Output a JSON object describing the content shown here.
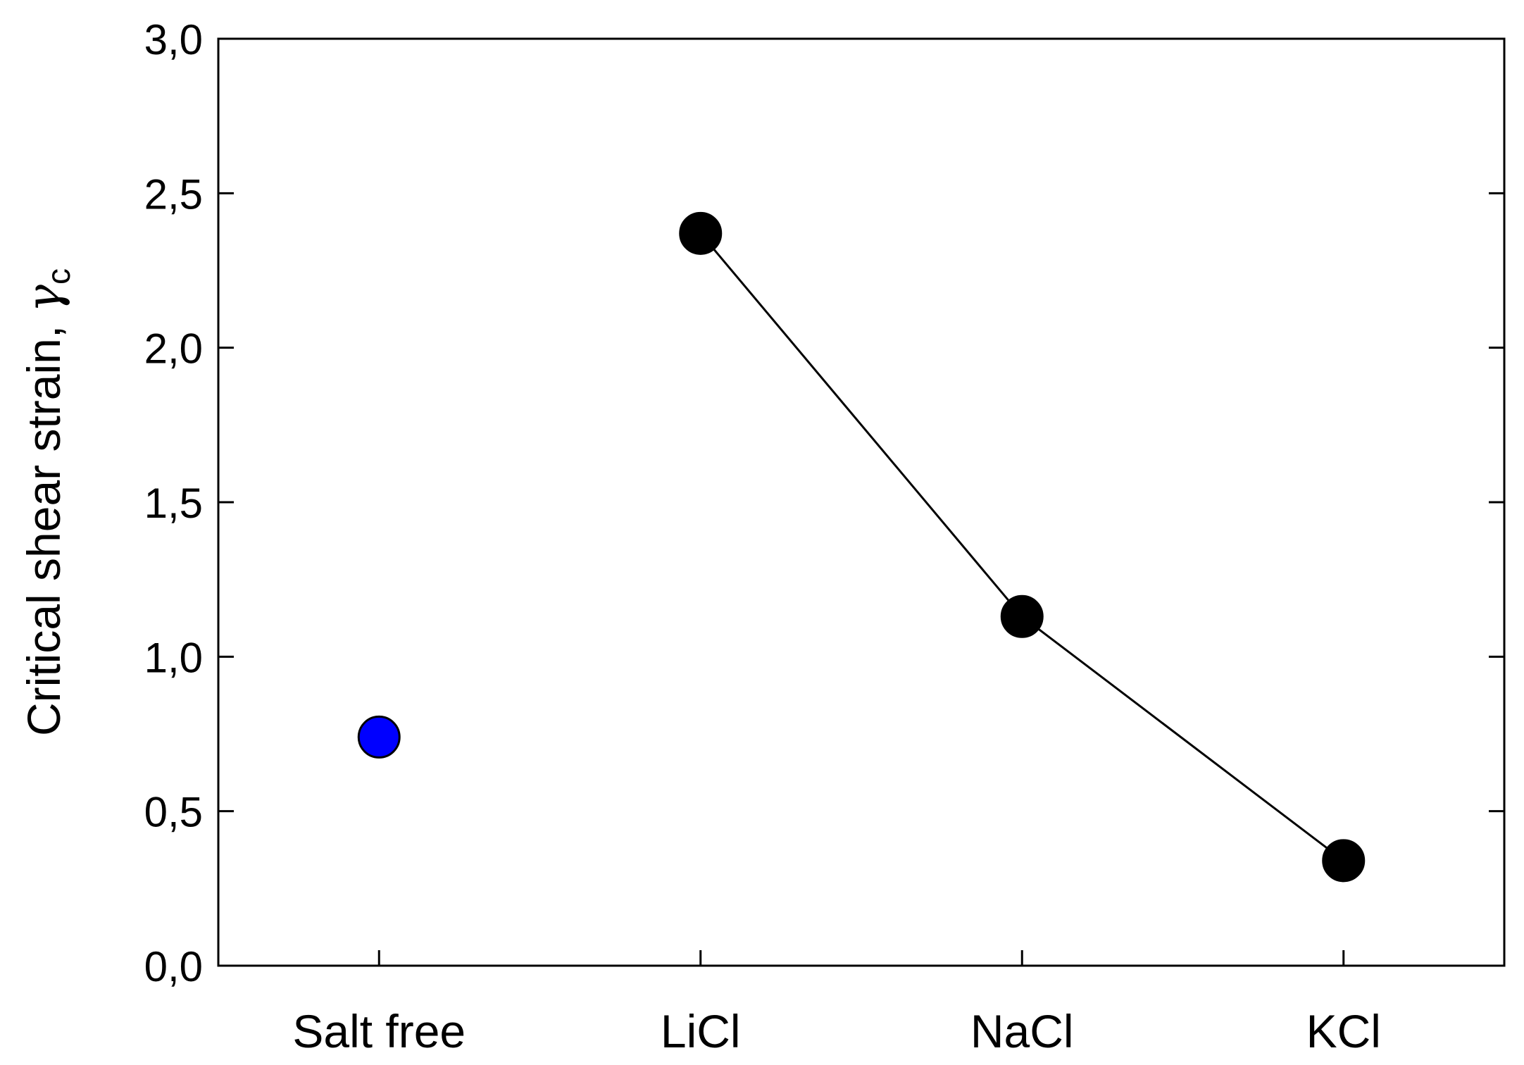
{
  "chart_data": {
    "type": "scatter",
    "title": "",
    "xlabel": "",
    "ylabel": "Critical shear strain, ",
    "ylabel_symbol": "γ",
    "ylabel_subscript": "c",
    "categories": [
      "Salt free",
      "LiCl",
      "NaCl",
      "KCl"
    ],
    "ylim": [
      0.0,
      3.0
    ],
    "yticks": [
      0.0,
      0.5,
      1.0,
      1.5,
      2.0,
      2.5,
      3.0
    ],
    "ytick_labels": [
      "0,0",
      "0,5",
      "1,0",
      "1,5",
      "2,0",
      "2,5",
      "3,0"
    ],
    "grid": false,
    "series": [
      {
        "categories": [
          "Salt free"
        ],
        "values": [
          0.74
        ],
        "marker_color": "#0000ff",
        "connected": false
      },
      {
        "categories": [
          "LiCl",
          "NaCl",
          "KCl"
        ],
        "values": [
          2.37,
          1.13,
          0.34
        ],
        "marker_color": "#000000",
        "connected": true
      }
    ]
  }
}
